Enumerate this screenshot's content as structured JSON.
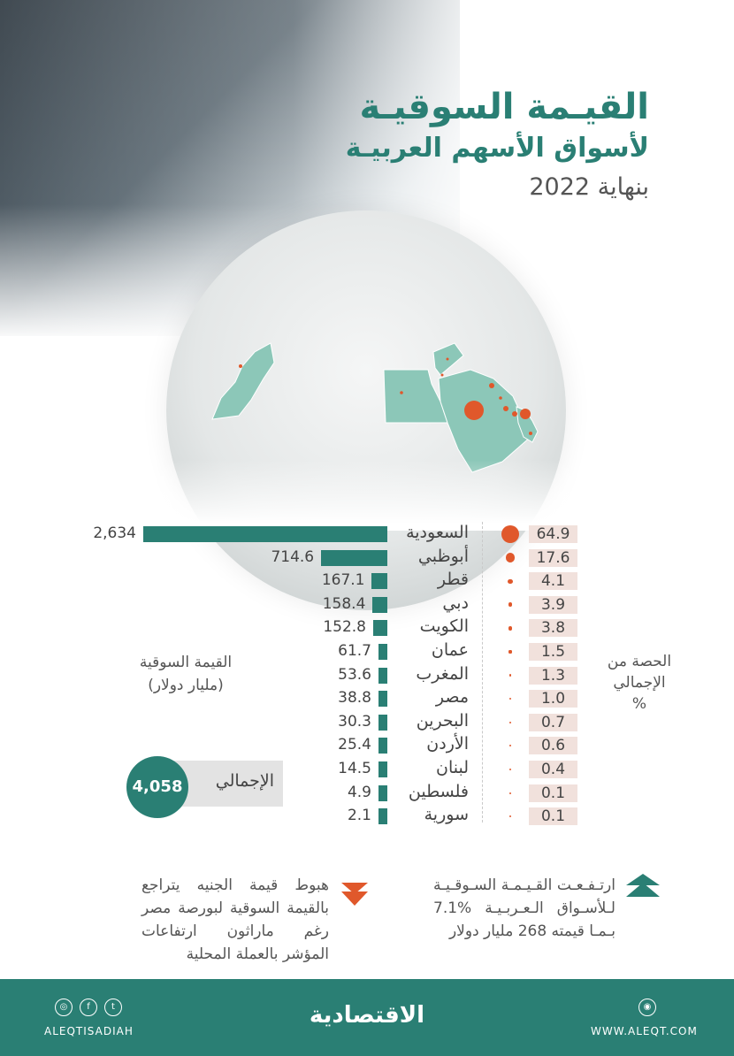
{
  "title": {
    "line1": "القيـمة السوقيـة",
    "line2": "لأسواق الأسهم العربيـة",
    "line3": "بنهاية 2022"
  },
  "chart_data": {
    "type": "bar",
    "title": "القيـمة السوقيـة لأسواق الأسهم العربيـة بنهاية 2022",
    "categories": [
      "السعودية",
      "أبوظبي",
      "قطر",
      "دبي",
      "الكويت",
      "عمان",
      "المغرب",
      "مصر",
      "البحرين",
      "الأردن",
      "لبنان",
      "فلسطين",
      "سورية"
    ],
    "series": [
      {
        "name": "القيمة السوقية (مليار دولار)",
        "values": [
          2634,
          714.6,
          167.1,
          158.4,
          152.8,
          61.7,
          53.6,
          38.8,
          30.3,
          25.4,
          14.5,
          4.9,
          2.1
        ]
      },
      {
        "name": "الحصة من الإجمالي %",
        "values": [
          64.9,
          17.6,
          4.1,
          3.9,
          3.8,
          1.5,
          1.3,
          1.0,
          0.7,
          0.6,
          0.4,
          0.1,
          0.1
        ]
      }
    ],
    "value_labels": [
      "2,634",
      "714.6",
      "167.1",
      "158.4",
      "152.8",
      "61.7",
      "53.6",
      "38.8",
      "30.3",
      "25.4",
      "14.5",
      "4.9",
      "2.1"
    ],
    "share_labels": [
      "64.9",
      "17.6",
      "4.1",
      "3.9",
      "3.8",
      "1.5",
      "1.3",
      "1.0",
      "0.7",
      "0.6",
      "0.4",
      "0.1",
      "0.1"
    ],
    "total_label": "الإجمالي",
    "total_value": "4,058",
    "ylabel_value": "القيمة السوقية (مليار دولار)",
    "ylabel_share": "الحصة من الإجمالي %"
  },
  "legend": {
    "market_value_line1": "القيمة السوقية",
    "market_value_line2": "(مليار دولار)",
    "share_line1": "الحصة من",
    "share_line2": "الإجمالي",
    "share_line3": "%"
  },
  "notes": {
    "up": "ارتـفـعـت القـيـمـة السـوقـيـة لـلأسـواق الـعـربـيـة %7.1 بـمـا قيمته 268 مليار دولار",
    "down": "هبوط قيمة الجنيه يتراجع بالقيمة السوقية لبورصة مصر رغم ماراثون ارتفاعات المؤشر بالعملة المحلية"
  },
  "colors": {
    "teal": "#2a7f74",
    "orange": "#e0582b",
    "share_bg": "#f1e1dc"
  },
  "footer": {
    "logo": "الاقتصادية",
    "handle": "ALEQTISADIAH",
    "website": "WWW.ALEQT.COM",
    "icons": [
      "instagram-icon",
      "facebook-icon",
      "twitter-icon",
      "web-icon"
    ]
  }
}
